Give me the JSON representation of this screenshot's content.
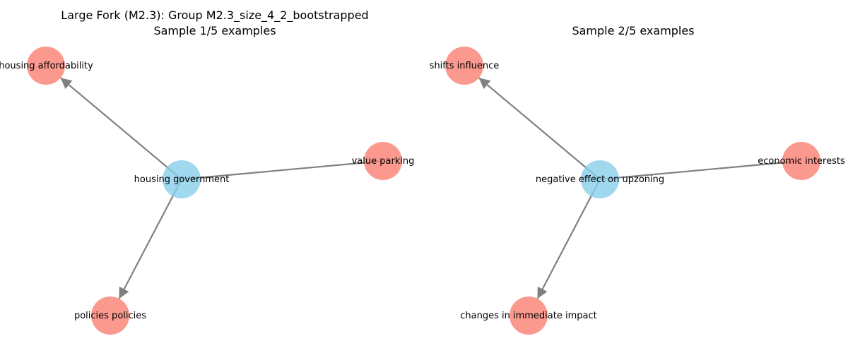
{
  "panels": [
    {
      "title_lines": [
        "Large Fork (M2.3): Group M2.3_size_4_2_bootstrapped",
        "Sample 1/5 examples"
      ],
      "center": {
        "label": "housing government"
      },
      "leaves": [
        {
          "label": "housing affordability",
          "arrow": "in"
        },
        {
          "label": "value parking",
          "arrow": "none"
        },
        {
          "label": "policies policies",
          "arrow": "in"
        }
      ]
    },
    {
      "title_lines": [
        "Sample 2/5 examples"
      ],
      "center": {
        "label": "negative effect on upzoning"
      },
      "leaves": [
        {
          "label": "shifts influence",
          "arrow": "in"
        },
        {
          "label": "economic interests",
          "arrow": "none"
        },
        {
          "label": "changes in immediate impact",
          "arrow": "in"
        }
      ]
    }
  ],
  "colors": {
    "center_node": "#87CEEB",
    "leaf_node": "#FA8072",
    "edge": "#808080"
  }
}
